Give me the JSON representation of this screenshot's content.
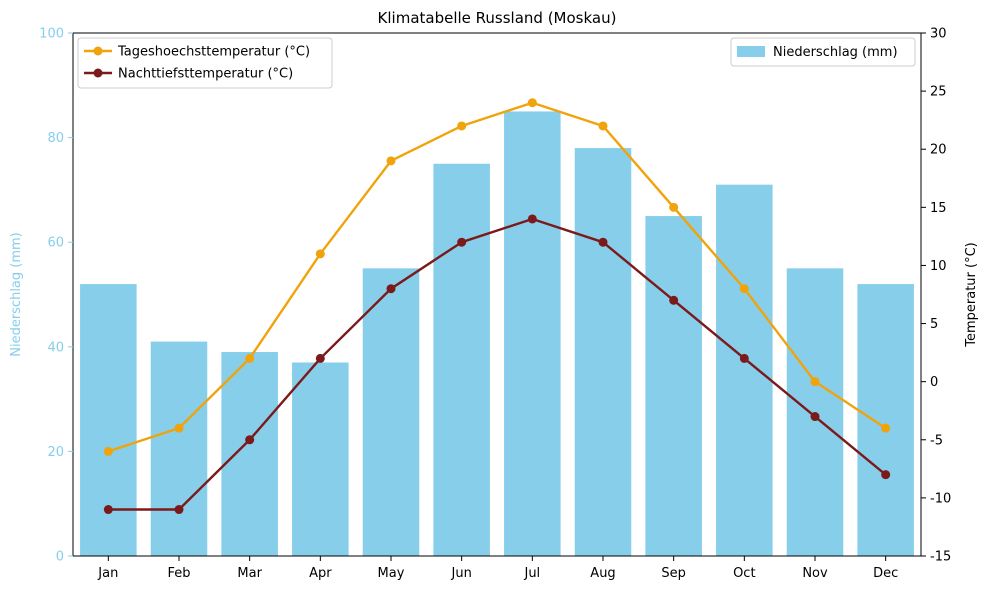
{
  "chart_data": {
    "type": "bar",
    "title": "Klimatabelle Russland (Moskau)",
    "categories": [
      "Jan",
      "Feb",
      "Mar",
      "Apr",
      "May",
      "Jun",
      "Jul",
      "Aug",
      "Sep",
      "Oct",
      "Nov",
      "Dec"
    ],
    "bar_series": {
      "name": "Niederschlag (mm)",
      "color": "#87ceeb",
      "values": [
        52,
        41,
        39,
        37,
        55,
        75,
        85,
        78,
        65,
        71,
        55,
        52
      ]
    },
    "line_series": [
      {
        "name": "Tageshoechsttemperatur (°C)",
        "color": "#f0a30a",
        "values": [
          -6,
          -4,
          2,
          11,
          19,
          22,
          24,
          22,
          15,
          8,
          0,
          -4
        ]
      },
      {
        "name": "Nachttiefsttemperatur (°C)",
        "color": "#7b1a1a",
        "values": [
          -11,
          -11,
          -5,
          2,
          8,
          12,
          14,
          12,
          7,
          2,
          -3,
          -8
        ]
      }
    ],
    "y_left": {
      "label": "Niederschlag (mm)",
      "color": "#87ceeb",
      "lim": [
        0,
        100
      ],
      "ticks": [
        0,
        20,
        40,
        60,
        80,
        100
      ]
    },
    "y_right": {
      "label": "Temperatur (°C)",
      "color": "#000000",
      "lim": [
        -15,
        30
      ],
      "ticks": [
        -15,
        -10,
        -5,
        0,
        5,
        10,
        15,
        20,
        25,
        30
      ]
    },
    "legends": {
      "lines": "top-left",
      "bars": "top-right"
    },
    "grid": false
  }
}
